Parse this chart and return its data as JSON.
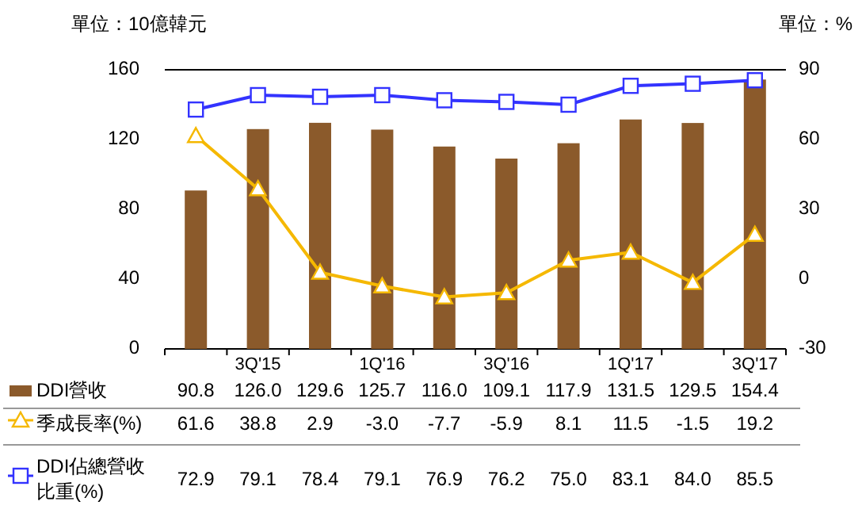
{
  "chart_data": {
    "type": "bar",
    "annotations": [
      "單位：10億韓元",
      "單位：%"
    ],
    "categories": [
      null,
      "3Q'15",
      null,
      "1Q'16",
      null,
      "3Q'16",
      null,
      "1Q'17",
      null,
      "3Q'17"
    ],
    "series": [
      {
        "name": "DDI營收",
        "color": "#8b5a2b",
        "values": [
          90.8,
          126.0,
          129.6,
          125.7,
          116.0,
          109.1,
          117.9,
          131.5,
          129.5,
          154.4
        ],
        "value_labels": [
          "90.8",
          "126.0",
          "129.6",
          "125.7",
          "116.0",
          "109.1",
          "117.9",
          "131.5",
          "129.5",
          "154.4"
        ]
      },
      {
        "name": "季成長率(%)",
        "type": "line",
        "axis": "y2",
        "marker": "triangle",
        "color": "#f5b800",
        "values": [
          61.6,
          38.8,
          2.9,
          -3.0,
          -7.7,
          -5.9,
          8.1,
          11.5,
          -1.5,
          19.2
        ],
        "value_labels": [
          "61.6",
          "38.8",
          "2.9",
          "-3.0",
          "-7.7",
          "-5.9",
          "8.1",
          "11.5",
          "-1.5",
          "19.2"
        ]
      },
      {
        "name": "DDI佔總營收比重(%)",
        "type": "line",
        "axis": "y2",
        "marker": "square",
        "color": "#3333ff",
        "values": [
          72.9,
          79.1,
          78.4,
          79.1,
          76.9,
          76.2,
          75.0,
          83.1,
          84.0,
          85.5
        ],
        "value_labels": [
          "72.9",
          "79.1",
          "78.4",
          "79.1",
          "76.9",
          "76.2",
          "75.0",
          "83.1",
          "84.0",
          "85.5"
        ]
      }
    ],
    "ylim": [
      0,
      160
    ],
    "yticks": [
      0,
      40,
      80,
      120,
      160
    ],
    "y2lim": [
      -30,
      90
    ],
    "y2ticks": [
      -30,
      0,
      30,
      60,
      90
    ],
    "legend": "bottom"
  }
}
